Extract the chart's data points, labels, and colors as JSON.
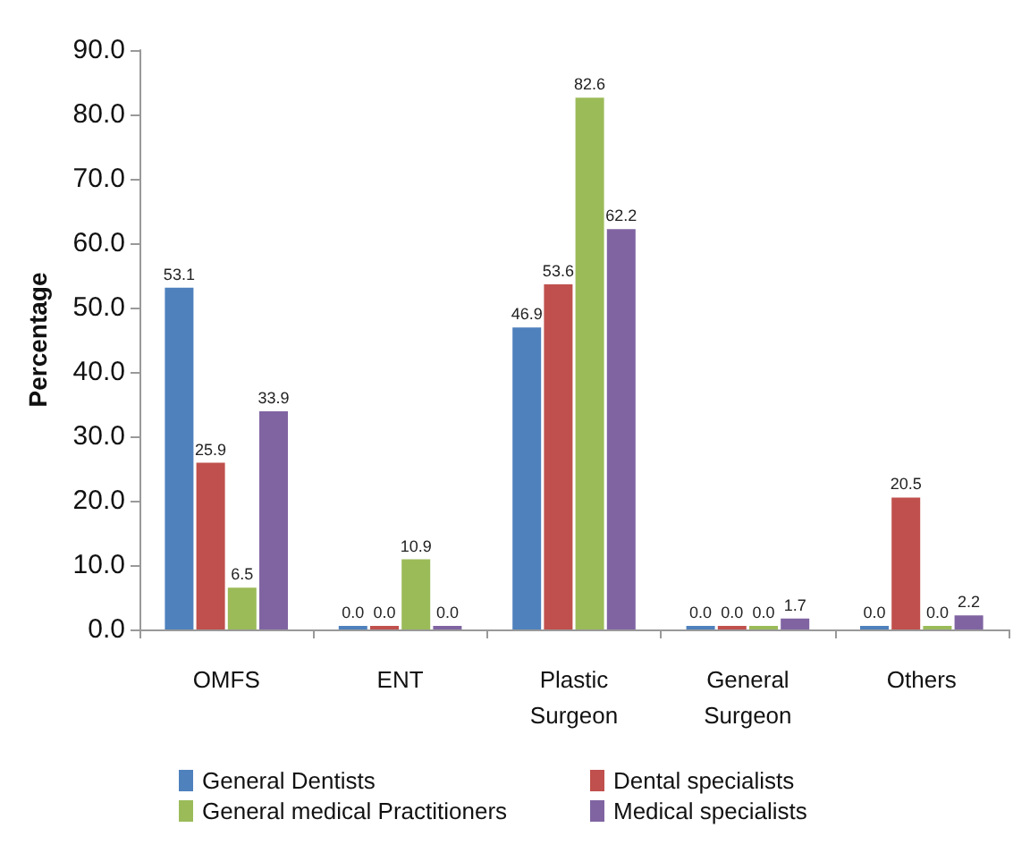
{
  "chart_data": {
    "type": "bar",
    "ylabel": "Percentage",
    "categories": [
      "OMFS",
      "ENT",
      "Plastic\nSurgeon",
      "General\nSurgeon",
      "Others"
    ],
    "series": [
      {
        "name": "General Dentists",
        "color": "#4f81bd",
        "values": [
          53.1,
          0.0,
          46.9,
          0.0,
          0.0
        ],
        "value_labels": [
          "53.1",
          "0.0",
          "46.9",
          "0.0",
          "0.0"
        ]
      },
      {
        "name": "Dental specialists",
        "color": "#c0504d",
        "values": [
          25.9,
          0.0,
          53.6,
          0.0,
          20.5
        ],
        "value_labels": [
          "25.9",
          "0.0",
          "53.6",
          "0.0",
          "20.5"
        ]
      },
      {
        "name": "General medical Practitioners",
        "color": "#9bbb59",
        "values": [
          6.5,
          10.9,
          82.6,
          0.0,
          0.0
        ],
        "value_labels": [
          "6.5",
          "10.9",
          "82.6",
          "0.0",
          "0.0"
        ]
      },
      {
        "name": "Medical specialists",
        "color": "#8064a2",
        "values": [
          33.9,
          0.0,
          62.2,
          1.7,
          2.2
        ],
        "value_labels": [
          "33.9",
          "0.0",
          "62.2",
          "1.7",
          "2.2"
        ]
      }
    ],
    "ylim": [
      0,
      90
    ],
    "yticks": [
      {
        "value": 0,
        "label": "0.0"
      },
      {
        "value": 10,
        "label": "10.0"
      },
      {
        "value": 20,
        "label": "20.0"
      },
      {
        "value": 30,
        "label": "30.0"
      },
      {
        "value": 40,
        "label": "40.0"
      },
      {
        "value": 50,
        "label": "50.0"
      },
      {
        "value": 60,
        "label": "60.0"
      },
      {
        "value": 70,
        "label": "70.0"
      },
      {
        "value": 80,
        "label": "80.0"
      },
      {
        "value": 90,
        "label": "90.0"
      }
    ],
    "grid": false,
    "legend": "bottom"
  }
}
